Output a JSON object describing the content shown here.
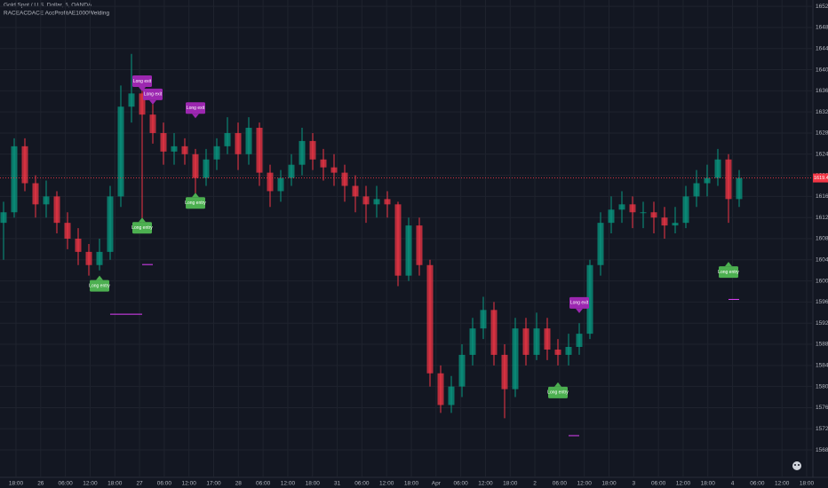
{
  "chart_data": {
    "type": "candlestick",
    "title": "Gold Spot / U.S. Dollar, 5, OANDA",
    "subtitle": "RACEACDACE AccProfitAE1000Welding",
    "up_color": "#089981",
    "down_color": "#f23645",
    "background": "#131722",
    "grid": true,
    "ylim": [
      1562.8,
      1653.2
    ],
    "yticks": [
      {
        "value": 1652,
        "label": "1652.000"
      },
      {
        "value": 1648,
        "label": "1648.000"
      },
      {
        "value": 1644,
        "label": "1644.000"
      },
      {
        "value": 1640,
        "label": "1640.000"
      },
      {
        "value": 1636,
        "label": "1636.000"
      },
      {
        "value": 1632,
        "label": "1632.000"
      },
      {
        "value": 1628,
        "label": "1628.000"
      },
      {
        "value": 1624,
        "label": "1624.000"
      },
      {
        "value": 1620,
        "label": "1620.000"
      },
      {
        "value": 1616,
        "label": "1616.000"
      },
      {
        "value": 1612,
        "label": "1612.000"
      },
      {
        "value": 1608,
        "label": "1608.000"
      },
      {
        "value": 1604,
        "label": "1604.000"
      },
      {
        "value": 1600,
        "label": "1600.000"
      },
      {
        "value": 1596,
        "label": "1596.000"
      },
      {
        "value": 1592,
        "label": "1592.000"
      },
      {
        "value": 1588,
        "label": "1588.000"
      },
      {
        "value": 1584,
        "label": "1584.000"
      },
      {
        "value": 1580,
        "label": "1580.000"
      },
      {
        "value": 1576,
        "label": "1576.000"
      },
      {
        "value": 1572,
        "label": "1572.000"
      },
      {
        "value": 1568,
        "label": "1568.000"
      }
    ],
    "xticks": [
      "18:00",
      "26",
      "06:00",
      "12:00",
      "18:00",
      "27",
      "06:00",
      "12:00",
      "17:00",
      "28",
      "06:00",
      "12:00",
      "18:00",
      "31",
      "06:00",
      "12:00",
      "18:00",
      "Apr",
      "06:00",
      "12:00",
      "18:00",
      "2",
      "06:00",
      "12:00",
      "18:00",
      "3",
      "06:00",
      "12:00",
      "18:00",
      "4",
      "06:00",
      "12:00",
      "18:00"
    ],
    "ohlc": [
      [
        1611,
        1615,
        1604,
        1613
      ],
      [
        1613,
        1627,
        1612,
        1625.5
      ],
      [
        1625.5,
        1627,
        1617,
        1618.5
      ],
      [
        1618.5,
        1620,
        1612,
        1614.5
      ],
      [
        1614.5,
        1619,
        1612,
        1616
      ],
      [
        1616,
        1617,
        1609,
        1611
      ],
      [
        1611,
        1613,
        1606,
        1608
      ],
      [
        1608,
        1610,
        1603,
        1605.5
      ],
      [
        1605.5,
        1607,
        1601,
        1603
      ],
      [
        1603,
        1608,
        1602,
        1605.5
      ],
      [
        1605.5,
        1618,
        1604,
        1616
      ],
      [
        1616,
        1637,
        1614,
        1633
      ],
      [
        1633,
        1643,
        1630,
        1635.5
      ],
      [
        1635.5,
        1637,
        1611,
        1631.5
      ],
      [
        1631.5,
        1634,
        1626,
        1628
      ],
      [
        1628,
        1630,
        1622,
        1624.5
      ],
      [
        1624.5,
        1628,
        1622,
        1625.5
      ],
      [
        1625.5,
        1627,
        1622,
        1624
      ],
      [
        1624,
        1625,
        1616,
        1619.5
      ],
      [
        1619.5,
        1625,
        1618,
        1623
      ],
      [
        1623,
        1627,
        1621,
        1625.5
      ],
      [
        1625.5,
        1631,
        1624,
        1628
      ],
      [
        1628,
        1630,
        1621,
        1624
      ],
      [
        1624,
        1631,
        1622,
        1629
      ],
      [
        1629,
        1630,
        1618,
        1620.5
      ],
      [
        1620.5,
        1622,
        1614,
        1617
      ],
      [
        1617,
        1621,
        1615,
        1619.5
      ],
      [
        1619.5,
        1624,
        1618,
        1622
      ],
      [
        1622,
        1629,
        1620,
        1626.5
      ],
      [
        1626.5,
        1628,
        1621,
        1623
      ],
      [
        1623,
        1625,
        1619,
        1621.5
      ],
      [
        1621.5,
        1624,
        1618,
        1620.5
      ],
      [
        1620.5,
        1622,
        1615,
        1618
      ],
      [
        1618,
        1620,
        1613,
        1616
      ],
      [
        1616,
        1618,
        1611,
        1614.5
      ],
      [
        1614.5,
        1618,
        1612,
        1615.5
      ],
      [
        1615.5,
        1617,
        1612,
        1614.5
      ],
      [
        1614.5,
        1615,
        1599,
        1601
      ],
      [
        1601,
        1612,
        1600,
        1610.5
      ],
      [
        1610.5,
        1612,
        1601,
        1603
      ],
      [
        1603,
        1604,
        1580,
        1582.5
      ],
      [
        1582.5,
        1584,
        1575,
        1576.5
      ],
      [
        1576.5,
        1582,
        1575,
        1580
      ],
      [
        1580,
        1588,
        1578,
        1586
      ],
      [
        1586,
        1593,
        1584,
        1591
      ],
      [
        1591,
        1597,
        1589,
        1594.5
      ],
      [
        1594.5,
        1596,
        1584,
        1586
      ],
      [
        1586,
        1588,
        1574,
        1579.5
      ],
      [
        1579.5,
        1593,
        1578,
        1591
      ],
      [
        1591,
        1593,
        1584,
        1586
      ],
      [
        1586,
        1594,
        1585,
        1591
      ],
      [
        1591,
        1593,
        1585,
        1587
      ],
      [
        1587,
        1589,
        1584,
        1586
      ],
      [
        1586,
        1590,
        1584,
        1587.5
      ],
      [
        1587.5,
        1592,
        1586,
        1590
      ],
      [
        1590,
        1604,
        1589,
        1603
      ],
      [
        1603,
        1613,
        1601,
        1611
      ],
      [
        1611,
        1616,
        1609,
        1613.5
      ],
      [
        1613.5,
        1617,
        1611,
        1614.5
      ],
      [
        1614.5,
        1616,
        1610,
        1613
      ],
      [
        1613,
        1615,
        1610,
        1613
      ],
      [
        1613,
        1615,
        1609,
        1612
      ],
      [
        1612,
        1614,
        1608,
        1610.5
      ],
      [
        1610.5,
        1614,
        1609,
        1611
      ],
      [
        1611,
        1618,
        1610,
        1616
      ],
      [
        1616,
        1621,
        1614,
        1618.5
      ],
      [
        1618.5,
        1622,
        1616,
        1619.5
      ],
      [
        1619.5,
        1625,
        1618,
        1623
      ],
      [
        1623,
        1624,
        1611,
        1615.5
      ],
      [
        1615.5,
        1621,
        1614,
        1619.5
      ]
    ],
    "signals": [
      {
        "label": "Long entry",
        "index": 9,
        "price": 1601,
        "color": "#4caf50"
      },
      {
        "label": "Long entry",
        "index": 13,
        "price": 1612,
        "color": "#4caf50"
      },
      {
        "label": "Long entry",
        "index": 18,
        "price": 1616.7,
        "color": "#4caf50"
      },
      {
        "label": "Long entry",
        "index": 52,
        "price": 1580.8,
        "color": "#4caf50"
      },
      {
        "label": "Long entry",
        "index": 68,
        "price": 1603.6,
        "color": "#4caf50"
      },
      {
        "label": "Long exit",
        "index": 13,
        "price": 1635.9,
        "color": "#9c27b0"
      },
      {
        "label": "Long exit",
        "index": 14,
        "price": 1633.4,
        "color": "#9c27b0"
      },
      {
        "label": "Long exit",
        "index": 18,
        "price": 1630.8,
        "color": "#9c27b0"
      },
      {
        "label": "Long exit",
        "index": 54,
        "price": 1593.9,
        "color": "#9c27b0"
      }
    ],
    "levels": [
      {
        "price": 1593.7,
        "start": 10,
        "end": 13
      },
      {
        "price": 1603.1,
        "start": 13,
        "end": 14
      },
      {
        "price": 1570.7,
        "start": 53,
        "end": 54
      },
      {
        "price": 1596.5,
        "start": 68,
        "end": 69
      }
    ],
    "level_color": "#e040fb",
    "last_price": {
      "value": 1619.496,
      "label": "1619.496",
      "color": "#f23645"
    }
  }
}
